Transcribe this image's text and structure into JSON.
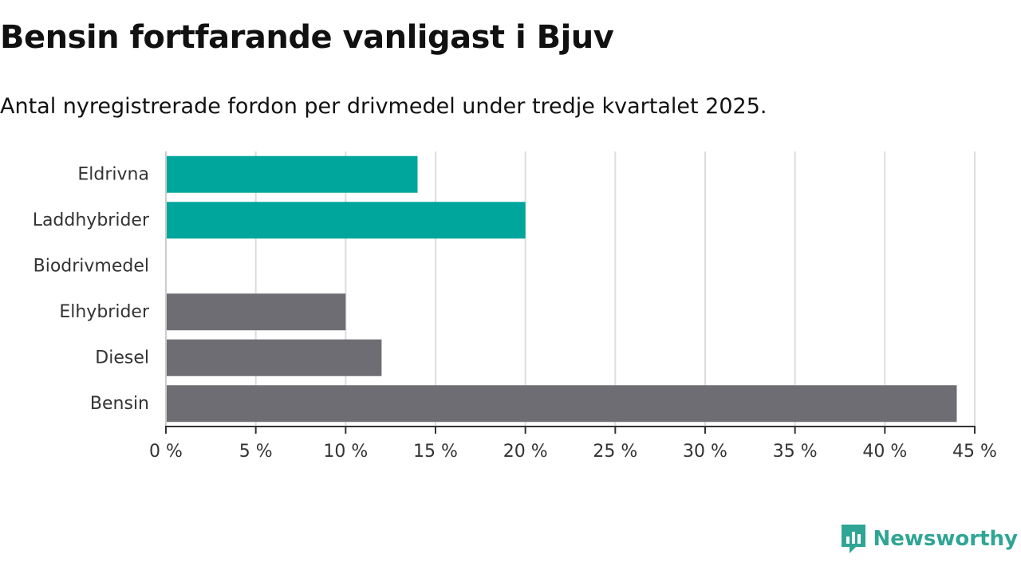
{
  "header": {
    "title": "Bensin fortfarande vanligast i Bjuv",
    "subtitle": "Antal nyregistrerade fordon per drivmedel under tredje kvartalet 2025."
  },
  "chart_data": {
    "type": "bar",
    "orientation": "horizontal",
    "categories": [
      "Eldrivna",
      "Laddhybrider",
      "Biodrivmedel",
      "Elhybrider",
      "Diesel",
      "Bensin"
    ],
    "values": [
      14,
      20,
      0,
      10,
      12,
      44
    ],
    "bar_colors": [
      "#00a59b",
      "#00a59b",
      "#00a59b",
      "#6e6d73",
      "#6e6d73",
      "#6e6d73"
    ],
    "xlim": [
      0,
      45
    ],
    "xticks": [
      0,
      5,
      10,
      15,
      20,
      25,
      30,
      35,
      40,
      45
    ],
    "xtick_labels": [
      "0 %",
      "5 %",
      "10 %",
      "15 %",
      "20 %",
      "25 %",
      "30 %",
      "35 %",
      "40 %",
      "45 %"
    ],
    "grid": true,
    "xlabel": "",
    "ylabel": ""
  },
  "colors": {
    "accent": "#00a59b",
    "neutral": "#6e6d73",
    "grid": "#dddddd",
    "brand": "#2fa595"
  },
  "footer": {
    "brand": "Newsworthy",
    "logo_icon": "newsworthy-logo-icon"
  }
}
